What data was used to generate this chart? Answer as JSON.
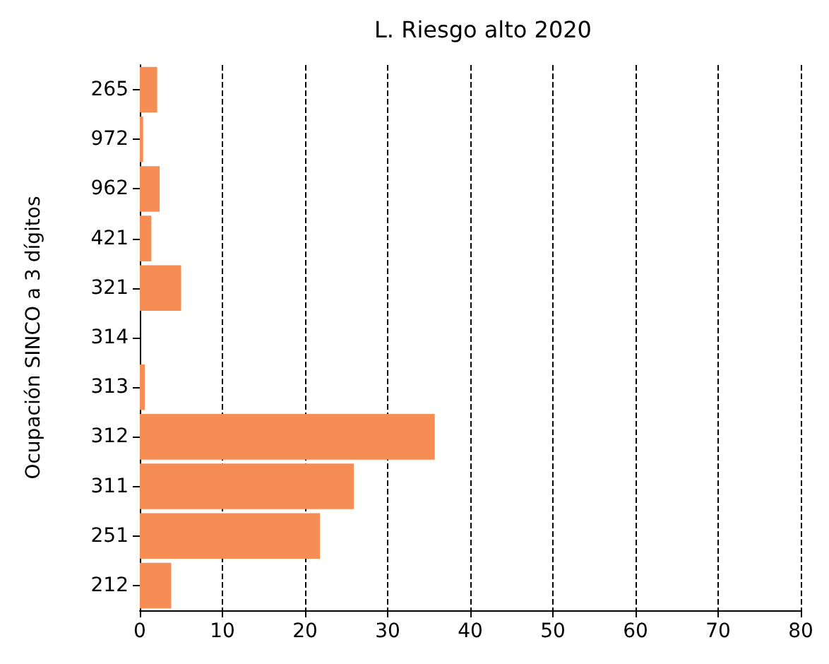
{
  "chart_data": {
    "type": "bar",
    "orientation": "horizontal",
    "title": "L. Riesgo alto 2020",
    "ylabel": "Ocupación SINCO a 3 dígitos",
    "categories": [
      "265",
      "972",
      "962",
      "421",
      "321",
      "314",
      "313",
      "312",
      "311",
      "251",
      "212"
    ],
    "values": [
      2.1,
      0.4,
      2.4,
      1.4,
      5.0,
      0,
      0.6,
      35.7,
      25.9,
      21.8,
      3.8
    ],
    "color": "#f68d55",
    "xlim": [
      0,
      80
    ],
    "xticks": [
      0,
      10,
      20,
      30,
      40,
      50,
      60,
      70,
      80
    ],
    "grid": "x",
    "line_style": "dashed"
  }
}
